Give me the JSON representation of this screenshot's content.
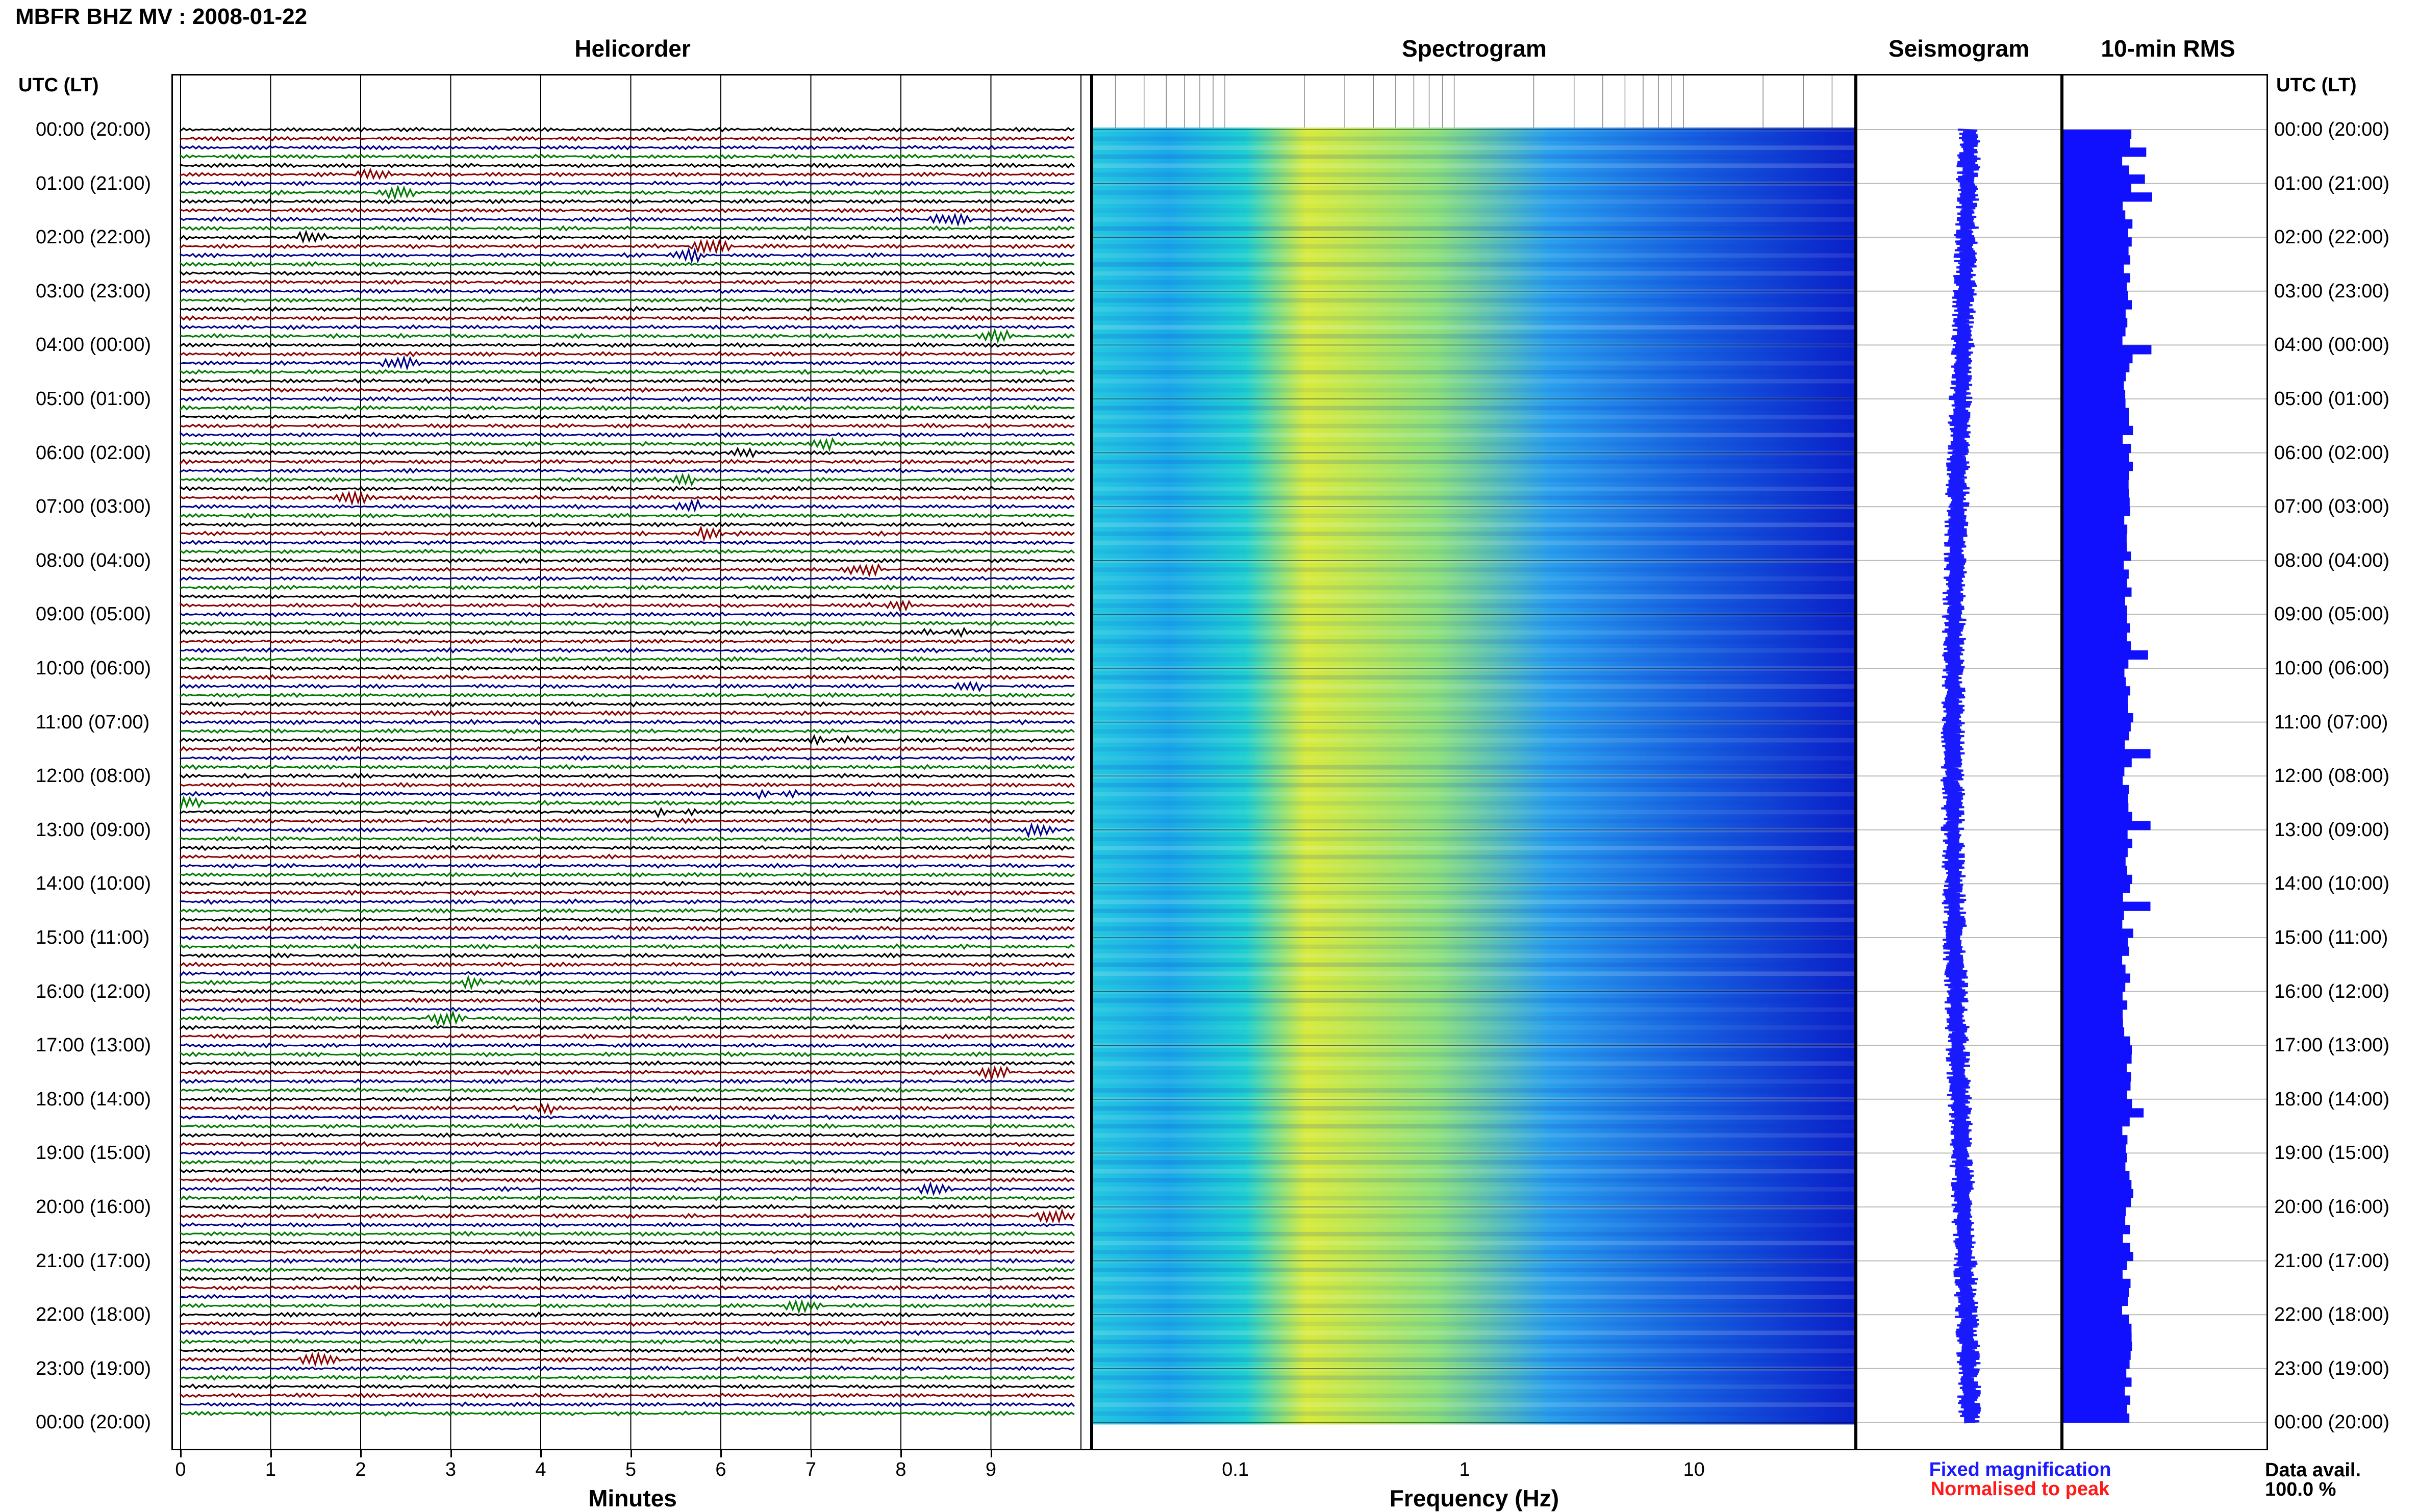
{
  "header": {
    "title": "MBFR BHZ MV : 2008-01-22"
  },
  "panels": {
    "helicorder": "Helicorder",
    "spectrogram": "Spectrogram",
    "seismogram": "Seismogram",
    "rms": "10-min RMS"
  },
  "time_axis": {
    "label": "UTC (LT)",
    "ticks": [
      "00:00 (20:00)",
      "01:00 (21:00)",
      "02:00 (22:00)",
      "03:00 (23:00)",
      "04:00 (00:00)",
      "05:00 (01:00)",
      "06:00 (02:00)",
      "07:00 (03:00)",
      "08:00 (04:00)",
      "09:00 (05:00)",
      "10:00 (06:00)",
      "11:00 (07:00)",
      "12:00 (08:00)",
      "13:00 (09:00)",
      "14:00 (10:00)",
      "15:00 (11:00)",
      "16:00 (12:00)",
      "17:00 (13:00)",
      "18:00 (14:00)",
      "19:00 (15:00)",
      "20:00 (16:00)",
      "21:00 (17:00)",
      "22:00 (18:00)",
      "23:00 (19:00)",
      "00:00 (20:00)"
    ]
  },
  "helicorder_axis": {
    "title": "Minutes",
    "ticks": [
      "0",
      "1",
      "2",
      "3",
      "4",
      "5",
      "6",
      "7",
      "8",
      "9"
    ]
  },
  "spectrogram_axis": {
    "title": "Frequency (Hz)",
    "ticks": [
      "0.1",
      "1",
      "10"
    ]
  },
  "legend": {
    "fixed": "Fixed magnification",
    "normalised": "Normalised to peak",
    "fixed_color": "#1a1aff",
    "normalised_color": "#ff1a1a"
  },
  "availability": {
    "label": "Data avail.",
    "value": "100.0 %"
  },
  "colors": {
    "trace_cycle": [
      "#000000",
      "#8b0000",
      "#00008b",
      "#007a00"
    ],
    "rms_fill": "#1010ff",
    "seismo_trace": "#1a1aff"
  }
}
